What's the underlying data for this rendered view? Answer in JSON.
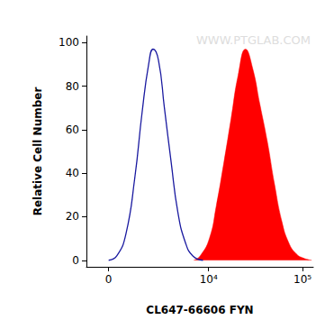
{
  "chart_data": {
    "type": "line",
    "x_label": "CL647-66606 FYN",
    "y_label": "Relative Cell Number",
    "annotations": [
      "WWW.PTGLAB.COM"
    ],
    "xlim": [
      -1000,
      130000
    ],
    "xticks": [
      0,
      {
        "value": 10000,
        "label": "10⁴"
      },
      {
        "value": 100000,
        "label": "10⁵"
      }
    ],
    "ylim": [
      -3,
      103
    ],
    "yticks": [
      0,
      20,
      40,
      60,
      80,
      100
    ],
    "grid": false,
    "series": [
      {
        "type": "line",
        "color": "#1a1aa0",
        "x": [
          0,
          350,
          760,
          1200,
          1600,
          2000,
          2300,
          2700,
          3200,
          3850,
          4600,
          5600,
          6750,
          8700
        ],
        "values": [
          0,
          2,
          12,
          38,
          68,
          90,
          97,
          92,
          70,
          45,
          22,
          8,
          2,
          0
        ]
      },
      {
        "type": "area",
        "color": "#ff0000",
        "x": [
          6900,
          8100,
          10200,
          12100,
          14600,
          17400,
          20700,
          24800,
          29600,
          35100,
          42100,
          50400,
          60200,
          71500,
          85600,
          102000,
          125000
        ],
        "values": [
          0,
          2,
          10,
          25,
          45,
          65,
          85,
          97,
          88,
          72,
          55,
          35,
          18,
          8,
          3,
          1,
          0
        ]
      }
    ]
  }
}
